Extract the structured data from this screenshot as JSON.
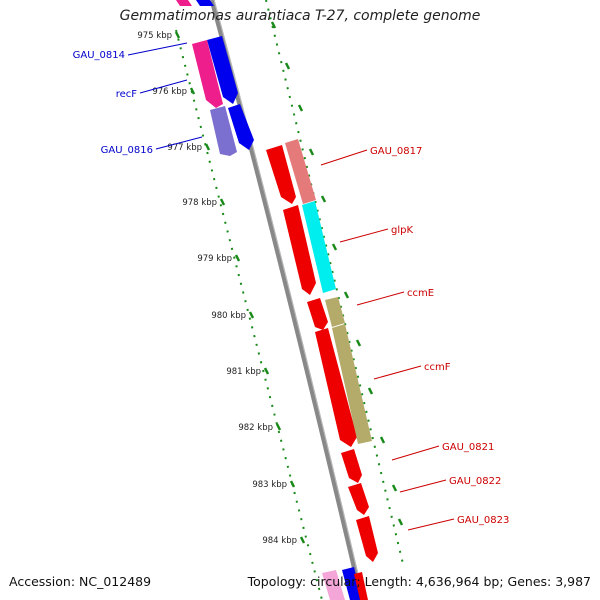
{
  "title": "Gemmatimonas aurantiaca T-27, complete genome",
  "footer": {
    "accession": "Accession: NC_012489",
    "stats": "Topology: circular; Length: 4,636,964 bp; Genes: 3,987"
  },
  "ticks": [
    "975 kbp",
    "976 kbp",
    "977 kbp",
    "978 kbp",
    "979 kbp",
    "980 kbp",
    "981 kbp",
    "982 kbp",
    "983 kbp",
    "984 kbp"
  ],
  "genes_left": [
    "GAU_0814",
    "recF",
    "GAU_0816"
  ],
  "genes_right": [
    "GAU_0817",
    "glpK",
    "ccmE",
    "ccmF",
    "GAU_0821",
    "GAU_0822",
    "GAU_0823"
  ],
  "colors": {
    "cds_blue": "#0000ee",
    "cds_red": "#ee0000",
    "cog_magenta": "#ee1e8c",
    "cog_purple": "#7b6fcf",
    "cog_salmon": "#e47a7a",
    "cog_cyan": "#00eeee",
    "cog_olive": "#b4aa6a",
    "backbone": "#888888",
    "ticks": "#1a8a1a",
    "label_left": "#0000cc",
    "label_right": "#cc0000"
  }
}
